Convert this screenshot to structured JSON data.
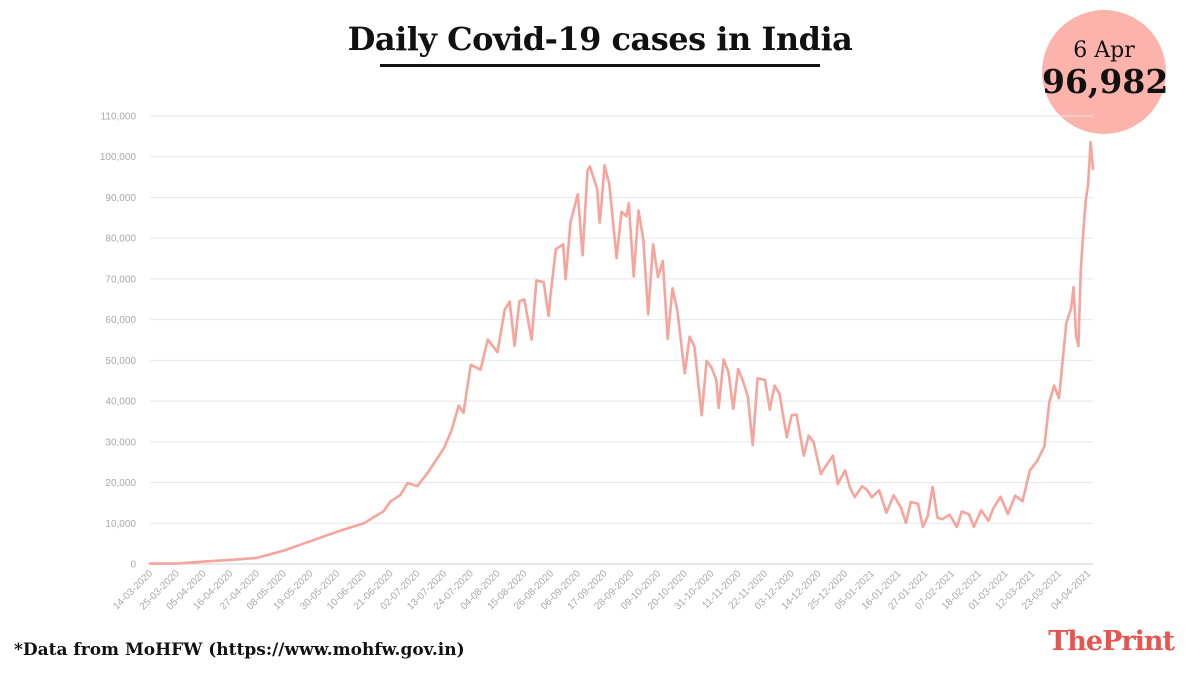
{
  "header": {
    "title": "Daily Covid-19 cases in India"
  },
  "callout": {
    "date": "6 Apr",
    "value": "96,982"
  },
  "footer": {
    "source": "*Data from MoHFW (https://www.mohfw.gov.in)",
    "logo": "ThePrint"
  },
  "colors": {
    "line": "#f6a49c",
    "callout": "#fbb3ac",
    "brand": "#e8554e",
    "grid": "#e7e7e7",
    "axis_text": "#a8a8a8"
  },
  "chart_data": {
    "type": "line",
    "title": "Daily Covid-19 cases in India",
    "xlabel": "",
    "ylabel": "",
    "grid": true,
    "ylim": [
      0,
      110000
    ],
    "y_ticks": [
      0,
      10000,
      20000,
      30000,
      40000,
      50000,
      60000,
      70000,
      80000,
      90000,
      100000,
      110000
    ],
    "y_tick_labels": [
      "0",
      "10,000",
      "20,000",
      "30,000",
      "40,000",
      "50,000",
      "60,000",
      "70,000",
      "80,000",
      "90,000",
      "100,000",
      "110,000"
    ],
    "x_tick_labels": [
      "14-03-2020",
      "25-03-2020",
      "05-04-2020",
      "16-04-2020",
      "27-04-2020",
      "08-05-2020",
      "19-05-2020",
      "30-05-2020",
      "10-06-2020",
      "21-06-2020",
      "02-07-2020",
      "13-07-2020",
      "24-07-2020",
      "04-08-2020",
      "15-08-2020",
      "26-08-2020",
      "06-09-2020",
      "17-09-2020",
      "28-09-2020",
      "09-10-2020",
      "20-10-2020",
      "31-10-2020",
      "11-11-2020",
      "22-11-2020",
      "03-12-2020",
      "14-12-2020",
      "25-12-2020",
      "05-01-2021",
      "16-01-2021",
      "27-01-2021",
      "07-02-2021",
      "18-02-2021",
      "01-03-2021",
      "12-03-2021",
      "23-03-2021",
      "04-04-2021"
    ],
    "x_range": [
      "2020-03-14",
      "2021-04-06"
    ],
    "series": [
      {
        "points": [
          [
            "2020-03-14",
            100
          ],
          [
            "2020-03-25",
            90
          ],
          [
            "2020-04-05",
            600
          ],
          [
            "2020-04-16",
            1000
          ],
          [
            "2020-04-27",
            1500
          ],
          [
            "2020-05-08",
            3300
          ],
          [
            "2020-05-19",
            5600
          ],
          [
            "2020-05-30",
            7900
          ],
          [
            "2020-06-10",
            10000
          ],
          [
            "2020-06-14",
            11500
          ],
          [
            "2020-06-18",
            12900
          ],
          [
            "2020-06-21",
            15400
          ],
          [
            "2020-06-25",
            16900
          ],
          [
            "2020-06-28",
            19900
          ],
          [
            "2020-07-02",
            19100
          ],
          [
            "2020-07-06",
            22200
          ],
          [
            "2020-07-09",
            24900
          ],
          [
            "2020-07-13",
            28500
          ],
          [
            "2020-07-16",
            32700
          ],
          [
            "2020-07-19",
            38900
          ],
          [
            "2020-07-21",
            37100
          ],
          [
            "2020-07-24",
            48900
          ],
          [
            "2020-07-28",
            47700
          ],
          [
            "2020-07-31",
            55100
          ],
          [
            "2020-08-04",
            52000
          ],
          [
            "2020-08-07",
            62500
          ],
          [
            "2020-08-09",
            64400
          ],
          [
            "2020-08-11",
            53600
          ],
          [
            "2020-08-13",
            64500
          ],
          [
            "2020-08-15",
            65000
          ],
          [
            "2020-08-18",
            55100
          ],
          [
            "2020-08-20",
            69600
          ],
          [
            "2020-08-23",
            69200
          ],
          [
            "2020-08-25",
            60900
          ],
          [
            "2020-08-26",
            67100
          ],
          [
            "2020-08-28",
            77300
          ],
          [
            "2020-08-31",
            78500
          ],
          [
            "2020-09-01",
            69900
          ],
          [
            "2020-09-03",
            83900
          ],
          [
            "2020-09-06",
            90800
          ],
          [
            "2020-09-08",
            75800
          ],
          [
            "2020-09-10",
            96600
          ],
          [
            "2020-09-11",
            97600
          ],
          [
            "2020-09-14",
            92100
          ],
          [
            "2020-09-15",
            83800
          ],
          [
            "2020-09-16",
            90100
          ],
          [
            "2020-09-17",
            97900
          ],
          [
            "2020-09-19",
            93300
          ],
          [
            "2020-09-22",
            75100
          ],
          [
            "2020-09-24",
            86500
          ],
          [
            "2020-09-26",
            85400
          ],
          [
            "2020-09-27",
            88600
          ],
          [
            "2020-09-29",
            70600
          ],
          [
            "2020-10-01",
            86800
          ],
          [
            "2020-10-03",
            79500
          ],
          [
            "2020-10-05",
            61300
          ],
          [
            "2020-10-07",
            78500
          ],
          [
            "2020-10-09",
            70500
          ],
          [
            "2020-10-11",
            74400
          ],
          [
            "2020-10-13",
            55300
          ],
          [
            "2020-10-15",
            67700
          ],
          [
            "2020-10-17",
            62200
          ],
          [
            "2020-10-20",
            46800
          ],
          [
            "2020-10-22",
            55800
          ],
          [
            "2020-10-24",
            53400
          ],
          [
            "2020-10-27",
            36500
          ],
          [
            "2020-10-29",
            49900
          ],
          [
            "2020-10-31",
            48300
          ],
          [
            "2020-11-02",
            45200
          ],
          [
            "2020-11-03",
            38300
          ],
          [
            "2020-11-05",
            50200
          ],
          [
            "2020-11-07",
            47200
          ],
          [
            "2020-11-09",
            38100
          ],
          [
            "2020-11-11",
            47900
          ],
          [
            "2020-11-13",
            44900
          ],
          [
            "2020-11-15",
            41100
          ],
          [
            "2020-11-17",
            29200
          ],
          [
            "2020-11-19",
            45600
          ],
          [
            "2020-11-22",
            45200
          ],
          [
            "2020-11-24",
            37900
          ],
          [
            "2020-11-26",
            43800
          ],
          [
            "2020-11-28",
            41800
          ],
          [
            "2020-12-01",
            31100
          ],
          [
            "2020-12-03",
            36500
          ],
          [
            "2020-12-05",
            36700
          ],
          [
            "2020-12-08",
            26600
          ],
          [
            "2020-12-10",
            31500
          ],
          [
            "2020-12-12",
            30000
          ],
          [
            "2020-12-15",
            22100
          ],
          [
            "2020-12-17",
            24000
          ],
          [
            "2020-12-20",
            26600
          ],
          [
            "2020-12-22",
            19600
          ],
          [
            "2020-12-25",
            23000
          ],
          [
            "2020-12-27",
            18700
          ],
          [
            "2020-12-29",
            16400
          ],
          [
            "2021-01-01",
            19100
          ],
          [
            "2021-01-03",
            18200
          ],
          [
            "2021-01-05",
            16400
          ],
          [
            "2021-01-08",
            18100
          ],
          [
            "2021-01-11",
            12600
          ],
          [
            "2021-01-14",
            16900
          ],
          [
            "2021-01-17",
            13800
          ],
          [
            "2021-01-19",
            10100
          ],
          [
            "2021-01-21",
            15200
          ],
          [
            "2021-01-24",
            14800
          ],
          [
            "2021-01-26",
            9100
          ],
          [
            "2021-01-28",
            11700
          ],
          [
            "2021-01-30",
            18900
          ],
          [
            "2021-02-01",
            11400
          ],
          [
            "2021-02-03",
            11000
          ],
          [
            "2021-02-06",
            12100
          ],
          [
            "2021-02-09",
            9100
          ],
          [
            "2021-02-11",
            12900
          ],
          [
            "2021-02-14",
            12200
          ],
          [
            "2021-02-16",
            9100
          ],
          [
            "2021-02-19",
            13200
          ],
          [
            "2021-02-22",
            10600
          ],
          [
            "2021-02-24",
            13700
          ],
          [
            "2021-02-27",
            16500
          ],
          [
            "2021-03-02",
            12300
          ],
          [
            "2021-03-05",
            16800
          ],
          [
            "2021-03-08",
            15400
          ],
          [
            "2021-03-11",
            22900
          ],
          [
            "2021-03-14",
            25300
          ],
          [
            "2021-03-17",
            28900
          ],
          [
            "2021-03-19",
            39700
          ],
          [
            "2021-03-21",
            43800
          ],
          [
            "2021-03-23",
            40700
          ],
          [
            "2021-03-26",
            59100
          ],
          [
            "2021-03-28",
            62700
          ],
          [
            "2021-03-29",
            68000
          ],
          [
            "2021-03-30",
            56200
          ],
          [
            "2021-03-31",
            53500
          ],
          [
            "2021-04-01",
            72300
          ],
          [
            "2021-04-02",
            81500
          ],
          [
            "2021-04-03",
            89100
          ],
          [
            "2021-04-04",
            93200
          ],
          [
            "2021-04-05",
            103600
          ],
          [
            "2021-04-06",
            96982
          ]
        ]
      }
    ]
  }
}
